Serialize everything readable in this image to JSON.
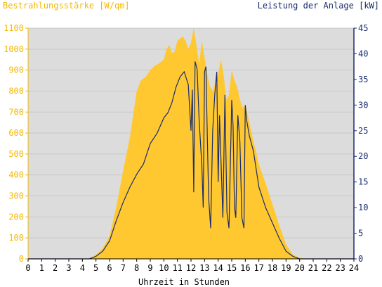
{
  "chart_data": {
    "type": "area",
    "left_axis_title": "Bestrahlungsstärke [W/qm]",
    "right_axis_title": "Leistung der Anlage [kW]",
    "xlabel": "Uhrzeit in Stunden",
    "xlim": [
      0,
      24
    ],
    "ylim_left": [
      0,
      1100
    ],
    "ylim_right": [
      0,
      45
    ],
    "x_ticks": [
      "0",
      "1",
      "2",
      "3",
      "4",
      "5",
      "6",
      "7",
      "8",
      "9",
      "10",
      "11",
      "12",
      "13",
      "14",
      "15",
      "16",
      "17",
      "18",
      "19",
      "20",
      "21",
      "22",
      "23",
      "24"
    ],
    "y_ticks_left": [
      "0",
      "100",
      "200",
      "300",
      "400",
      "500",
      "600",
      "700",
      "800",
      "900",
      "1000",
      "1100"
    ],
    "y_ticks_right": [
      "0",
      "5",
      "10",
      "15",
      "20",
      "25",
      "30",
      "35",
      "40",
      "45"
    ],
    "background": "#dcdcdc",
    "colors": {
      "left_axis": "#f5b800",
      "right_axis": "#1a2c6e",
      "irradiance_fill": "#ffc830"
    },
    "series": [
      {
        "name": "Bestrahlungsstärke",
        "axis": "left",
        "style": "area",
        "x": [
          0,
          4.5,
          5,
          5.5,
          6,
          6.5,
          7,
          7.5,
          8,
          8.3,
          8.7,
          9,
          9.3,
          9.6,
          10,
          10.2,
          10.4,
          10.6,
          10.8,
          11,
          11.2,
          11.4,
          11.6,
          11.8,
          12,
          12.2,
          12.4,
          12.6,
          12.8,
          13,
          13.2,
          13.4,
          13.6,
          13.8,
          14,
          14.2,
          14.4,
          14.6,
          14.8,
          15,
          15.2,
          15.4,
          15.6,
          15.8,
          16,
          16.2,
          16.4,
          16.6,
          16.8,
          17,
          17.5,
          18,
          18.5,
          19,
          19.5,
          20,
          20.5,
          24
        ],
        "y": [
          0,
          0,
          20,
          50,
          110,
          250,
          420,
          580,
          800,
          850,
          870,
          900,
          920,
          930,
          950,
          1000,
          1020,
          980,
          990,
          1040,
          1050,
          1060,
          1040,
          1000,
          1030,
          1100,
          1020,
          930,
          1040,
          960,
          880,
          820,
          800,
          840,
          880,
          950,
          880,
          760,
          780,
          900,
          850,
          820,
          760,
          720,
          730,
          680,
          620,
          560,
          510,
          450,
          360,
          260,
          160,
          70,
          20,
          5,
          0,
          0
        ]
      },
      {
        "name": "Leistung",
        "axis": "right",
        "style": "line",
        "x": [
          0,
          4.5,
          5,
          5.5,
          6,
          6.5,
          7,
          7.5,
          8,
          8.5,
          9,
          9.5,
          10,
          10.3,
          10.6,
          10.9,
          11.2,
          11.5,
          11.8,
          12,
          12.1,
          12.2,
          12.3,
          12.45,
          12.6,
          12.8,
          12.9,
          13,
          13.1,
          13.2,
          13.3,
          13.45,
          13.6,
          13.75,
          13.9,
          14,
          14.1,
          14.2,
          14.35,
          14.5,
          14.65,
          14.8,
          15,
          15.1,
          15.2,
          15.3,
          15.45,
          15.6,
          15.75,
          15.9,
          16,
          16.1,
          16.3,
          16.6,
          17,
          17.5,
          18,
          18.5,
          19,
          19.5,
          20,
          20.5,
          24
        ],
        "y": [
          0,
          0,
          0.5,
          1.5,
          3.5,
          7.5,
          11,
          14,
          16.5,
          18.5,
          22.5,
          24.5,
          27.5,
          28.5,
          30.5,
          33.5,
          35.5,
          36.5,
          34,
          25,
          33,
          13,
          38.5,
          37,
          27,
          18,
          10,
          36.5,
          37.5,
          24,
          12,
          6,
          25,
          32,
          36.5,
          15,
          28,
          20,
          8,
          32,
          9,
          6,
          31,
          26,
          10,
          8,
          28,
          23,
          8,
          6,
          30,
          27,
          24,
          21,
          14,
          10,
          7,
          4,
          1.5,
          0.5,
          0,
          0,
          0
        ]
      }
    ]
  }
}
